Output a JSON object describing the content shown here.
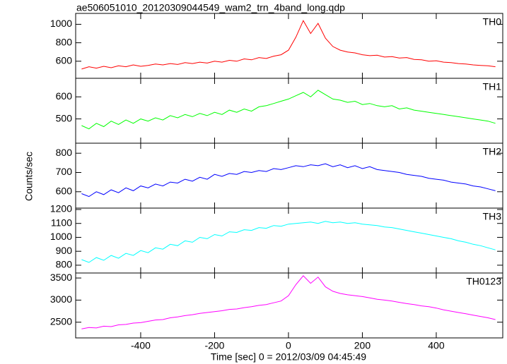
{
  "chart_data": {
    "type": "line",
    "title": "ae506051010_20120309044549_wam2_trn_4band_long.qdp",
    "xlabel": "Time [sec] 0 = 2012/03/09 04:45:49",
    "ylabel": "Counts/sec",
    "xlim": [
      -576,
      580
    ],
    "xticks": [
      -400,
      -200,
      0,
      200,
      400
    ],
    "x": [
      -560,
      -540,
      -520,
      -500,
      -480,
      -460,
      -440,
      -420,
      -400,
      -380,
      -360,
      -340,
      -320,
      -300,
      -280,
      -260,
      -240,
      -220,
      -200,
      -180,
      -160,
      -140,
      -120,
      -100,
      -80,
      -60,
      -40,
      -20,
      0,
      20,
      40,
      60,
      80,
      100,
      120,
      140,
      160,
      180,
      200,
      220,
      240,
      260,
      280,
      300,
      320,
      340,
      360,
      380,
      400,
      420,
      440,
      460,
      480,
      500,
      520,
      540,
      560
    ],
    "series": [
      {
        "name": "TH0",
        "color": "#ff0000",
        "ylim": [
          415,
          1118
        ],
        "yticks": [
          600,
          800,
          1000
        ],
        "values": [
          515,
          540,
          525,
          545,
          530,
          550,
          540,
          560,
          545,
          555,
          570,
          560,
          575,
          565,
          585,
          575,
          590,
          580,
          600,
          590,
          610,
          600,
          625,
          615,
          640,
          630,
          655,
          670,
          720,
          860,
          1040,
          900,
          1010,
          850,
          760,
          720,
          700,
          690,
          670,
          660,
          665,
          645,
          650,
          635,
          640,
          620,
          615,
          600,
          605,
          590,
          585,
          575,
          570,
          560,
          555,
          550,
          540
        ]
      },
      {
        "name": "TH1",
        "color": "#00ff00",
        "ylim": [
          390,
          684
        ],
        "yticks": [
          500,
          600
        ],
        "values": [
          470,
          455,
          480,
          465,
          490,
          475,
          495,
          480,
          500,
          490,
          505,
          495,
          515,
          505,
          520,
          510,
          525,
          515,
          530,
          520,
          540,
          530,
          545,
          535,
          555,
          560,
          570,
          580,
          590,
          605,
          620,
          600,
          630,
          610,
          590,
          585,
          575,
          580,
          565,
          570,
          560,
          555,
          560,
          545,
          550,
          540,
          535,
          530,
          525,
          520,
          515,
          510,
          505,
          500,
          495,
          490,
          480
        ]
      },
      {
        "name": "TH2",
        "color": "#0000ff",
        "ylim": [
          515,
          852
        ],
        "yticks": [
          600,
          700,
          800
        ],
        "values": [
          590,
          575,
          600,
          585,
          610,
          595,
          620,
          605,
          630,
          620,
          640,
          630,
          650,
          645,
          665,
          655,
          675,
          665,
          690,
          680,
          695,
          690,
          705,
          700,
          710,
          705,
          720,
          715,
          725,
          735,
          730,
          740,
          735,
          745,
          730,
          740,
          725,
          735,
          720,
          730,
          715,
          710,
          705,
          700,
          690,
          685,
          680,
          670,
          665,
          660,
          650,
          645,
          640,
          630,
          625,
          615,
          605
        ]
      },
      {
        "name": "TH3",
        "color": "#00ffff",
        "ylim": [
          744,
          1210
        ],
        "yticks": [
          800,
          900,
          1000,
          1100,
          1200
        ],
        "values": [
          840,
          820,
          855,
          835,
          870,
          850,
          885,
          870,
          905,
          890,
          925,
          915,
          950,
          940,
          975,
          965,
          1000,
          990,
          1020,
          1010,
          1040,
          1035,
          1055,
          1050,
          1070,
          1065,
          1085,
          1080,
          1095,
          1100,
          1105,
          1110,
          1100,
          1115,
          1105,
          1110,
          1100,
          1105,
          1095,
          1090,
          1085,
          1075,
          1070,
          1060,
          1050,
          1040,
          1030,
          1020,
          1010,
          1000,
          990,
          975,
          965,
          950,
          940,
          925,
          910
        ]
      },
      {
        "name": "TH0123",
        "color": "#ff00ff",
        "ylim": [
          2145,
          3613
        ],
        "yticks": [
          2500,
          3000,
          3500
        ],
        "values": [
          2350,
          2380,
          2370,
          2410,
          2400,
          2440,
          2450,
          2480,
          2490,
          2520,
          2550,
          2560,
          2600,
          2620,
          2650,
          2670,
          2700,
          2720,
          2740,
          2760,
          2790,
          2800,
          2830,
          2850,
          2880,
          2900,
          2940,
          2980,
          3100,
          3350,
          3550,
          3380,
          3520,
          3300,
          3200,
          3150,
          3120,
          3100,
          3080,
          3050,
          3020,
          3000,
          2980,
          2950,
          2920,
          2900,
          2870,
          2850,
          2820,
          2780,
          2750,
          2720,
          2690,
          2660,
          2630,
          2600,
          2560
        ]
      }
    ]
  }
}
